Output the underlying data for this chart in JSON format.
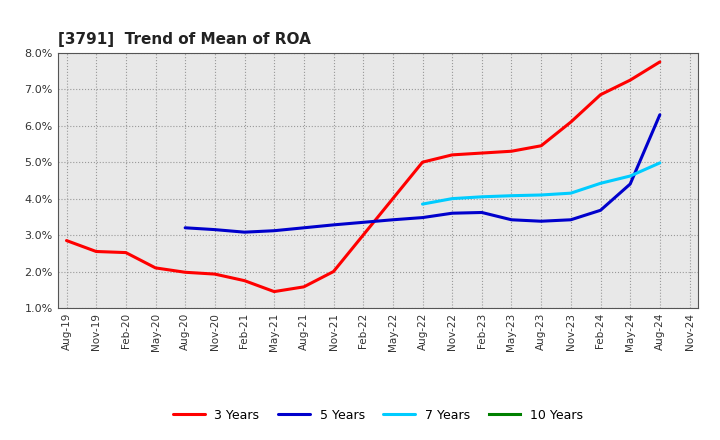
{
  "title": "[3791]  Trend of Mean of ROA",
  "ylim": [
    0.01,
    0.08
  ],
  "yticks": [
    0.01,
    0.02,
    0.03,
    0.04,
    0.05,
    0.06,
    0.07,
    0.08
  ],
  "ytick_labels": [
    "1.0%",
    "2.0%",
    "3.0%",
    "4.0%",
    "5.0%",
    "6.0%",
    "7.0%",
    "8.0%"
  ],
  "background_color": "#ffffff",
  "grid_color": "#999999",
  "x_labels": [
    "Aug-19",
    "Nov-19",
    "Feb-20",
    "May-20",
    "Aug-20",
    "Nov-20",
    "Feb-21",
    "May-21",
    "Aug-21",
    "Nov-21",
    "Feb-22",
    "May-22",
    "Aug-22",
    "Nov-22",
    "Feb-23",
    "May-23",
    "Aug-23",
    "Nov-23",
    "Feb-24",
    "May-24",
    "Aug-24",
    "Nov-24"
  ],
  "series": {
    "3 Years": {
      "color": "#ff0000",
      "values": [
        0.0285,
        0.0255,
        0.0252,
        0.021,
        0.0198,
        0.0193,
        0.0175,
        0.0145,
        0.0158,
        0.02,
        0.03,
        0.04,
        0.05,
        0.052,
        0.0525,
        0.053,
        0.0545,
        0.061,
        0.0685,
        0.0725,
        0.0775,
        null
      ]
    },
    "5 Years": {
      "color": "#0000cc",
      "values": [
        null,
        null,
        null,
        null,
        0.032,
        0.0315,
        0.0308,
        0.0312,
        0.032,
        0.0328,
        0.0335,
        0.0342,
        0.0348,
        0.036,
        0.0362,
        0.0342,
        0.0338,
        0.0342,
        0.0368,
        0.044,
        0.063,
        null
      ]
    },
    "7 Years": {
      "color": "#00ccff",
      "values": [
        null,
        null,
        null,
        null,
        null,
        null,
        null,
        null,
        null,
        null,
        null,
        null,
        0.0385,
        0.04,
        0.0405,
        0.0408,
        0.041,
        0.0415,
        0.0442,
        0.0462,
        0.0498,
        null
      ]
    },
    "10 Years": {
      "color": "#008000",
      "values": [
        null,
        null,
        null,
        null,
        null,
        null,
        null,
        null,
        null,
        null,
        null,
        null,
        null,
        null,
        null,
        null,
        null,
        null,
        null,
        null,
        null,
        null
      ]
    }
  },
  "legend_order": [
    "3 Years",
    "5 Years",
    "7 Years",
    "10 Years"
  ],
  "title_fontsize": 11,
  "tick_fontsize": 7.5,
  "linewidth": 2.2
}
